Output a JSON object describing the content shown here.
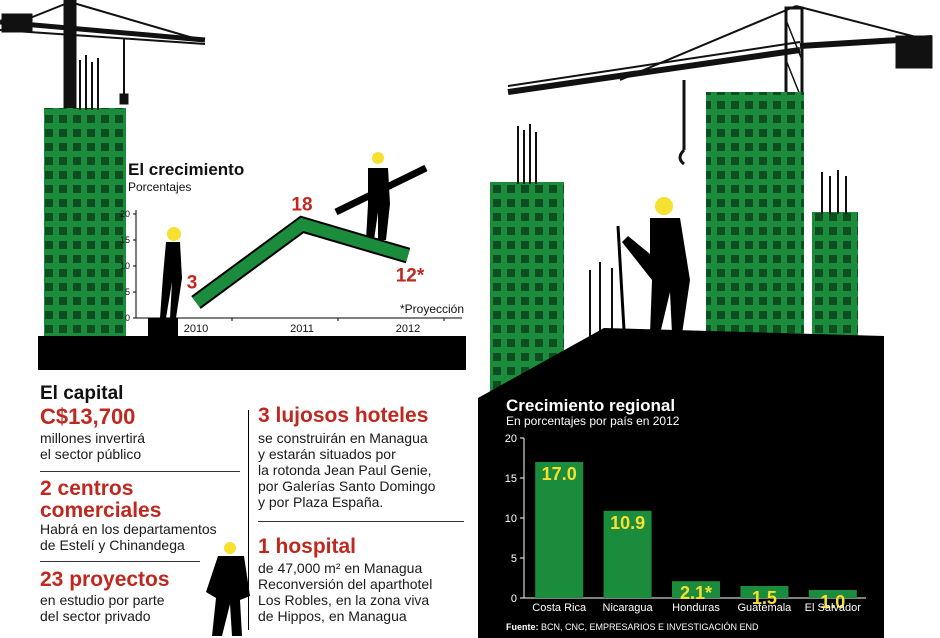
{
  "colors": {
    "green": "#1a8c3c",
    "red": "#c0281f",
    "yellow": "#f6e030",
    "black": "#000000"
  },
  "growth": {
    "title": "El crecimiento",
    "subtitle": "Porcentajes",
    "note": "*Proyección",
    "labels": [
      "3",
      "18",
      "12*"
    ]
  },
  "capital": {
    "title": "El capital",
    "amount": "C$13,700",
    "amount_text_1": "millones invertirá",
    "amount_text_2": "el sector público",
    "malls_title_1": "2 centros",
    "malls_title_2": "comerciales",
    "malls_text_1": "Habrá en los departamentos",
    "malls_text_2": "de Estelí y Chinandega",
    "projects_title": "23 proyectos",
    "projects_text_1": "en estudio por parte",
    "projects_text_2": "del sector privado",
    "hotels_title": "3 lujosos hoteles",
    "hotels_text": [
      "se construirán en Managua",
      "y estarán situados por",
      "la rotonda Jean Paul Genie,",
      "por Galerías Santo Domingo",
      "y por Plaza España."
    ],
    "hospital_title": "1 hospital",
    "hospital_text": [
      "de 47,000 m² en Managua",
      "Reconversión del aparthotel",
      "Los Robles, en la zona viva",
      "de Hippos, en Managua"
    ]
  },
  "regional": {
    "title": "Crecimiento regional",
    "subtitle": "En porcentajes por país en 2012",
    "source_label": "Fuente:",
    "source_text": "BCN, CNC, EMPRESARIOS E INVESTIGACIÓN END"
  },
  "chart_data": [
    {
      "type": "line",
      "title": "El crecimiento",
      "subtitle": "Porcentajes",
      "x": [
        "2010",
        "2011",
        "2012"
      ],
      "values": [
        3,
        18,
        12
      ],
      "value_labels": [
        "3",
        "18",
        "12*"
      ],
      "ylim": [
        0,
        20
      ],
      "yticks": [
        0,
        5,
        10,
        15,
        20
      ],
      "annotation": "*Proyección"
    },
    {
      "type": "bar",
      "title": "Crecimiento regional",
      "subtitle": "En porcentajes por país en 2012",
      "categories": [
        "Costa Rica",
        "Nicaragua",
        "Honduras",
        "Guatemala",
        "El Salvador"
      ],
      "values": [
        17.0,
        10.9,
        2.1,
        1.5,
        1.0
      ],
      "value_labels": [
        "17.0",
        "10.9",
        "2.1*",
        "1.5",
        "1.0"
      ],
      "ylim": [
        0,
        20
      ],
      "yticks": [
        0,
        5,
        10,
        15,
        20
      ]
    }
  ]
}
